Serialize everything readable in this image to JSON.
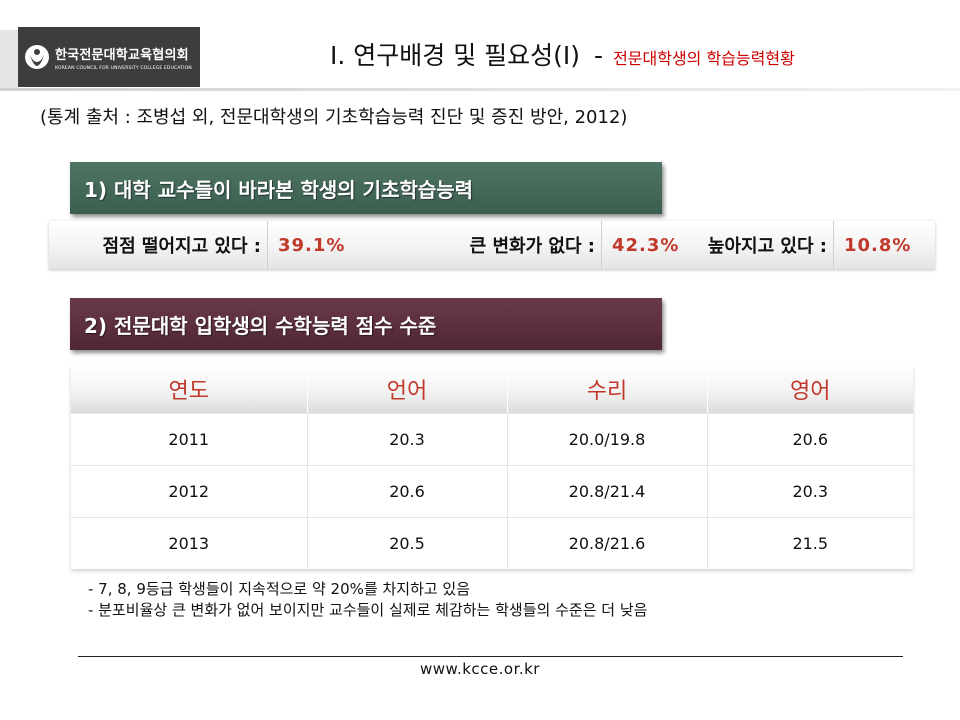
{
  "header": {
    "logo_name": "한국전문대학교육협의회",
    "logo_sub": "KOREAN COUNCIL FOR UNIVERSITY COLLEGE EDUCATION",
    "title_main": "Ⅰ. 연구배경 및 필요성(Ⅰ)",
    "title_dash": "-",
    "title_sub": "전문대학생의 학습능력현황"
  },
  "source": "(통계 출처 : 조병섭 외, 전문대학생의 기초학습능력 진단 및 증진 방안, 2012)",
  "section1": {
    "title": "1) 대학 교수들이 바라본 학생의 기초학습능력",
    "stats": [
      {
        "label": "점점 떨어지고 있다 :",
        "value": "39.1%"
      },
      {
        "label": "큰 변화가 없다 :",
        "value": "42.3%"
      },
      {
        "label": "높아지고 있다 :",
        "value": "10.8%"
      }
    ]
  },
  "section2": {
    "title": "2) 전문대학 입학생의 수학능력 점수 수준",
    "headers": [
      "연도",
      "언어",
      "수리",
      "영어"
    ],
    "rows": [
      [
        "2011",
        "20.3",
        "20.0/19.8",
        "20.6"
      ],
      [
        "2012",
        "20.6",
        "20.8/21.4",
        "20.3"
      ],
      [
        "2013",
        "20.5",
        "20.8/21.6",
        "21.5"
      ]
    ]
  },
  "notes": [
    "- 7, 8, 9등급 학생들이 지속적으로 약 20%를 차지하고 있음",
    "- 분포비율상 큰 변화가 없어 보이지만 교수들이 실제로 체감하는 학생들의 수준은 더 낮음"
  ],
  "footer": {
    "url": "www.kcce.or.kr"
  },
  "colors": {
    "banner1": "#476b5b",
    "banner2": "#5e2f3e",
    "accent_red": "#c0392b",
    "logo_bg": "#3d3d3d"
  },
  "icons": {
    "logo": "kcce-logo-icon"
  }
}
